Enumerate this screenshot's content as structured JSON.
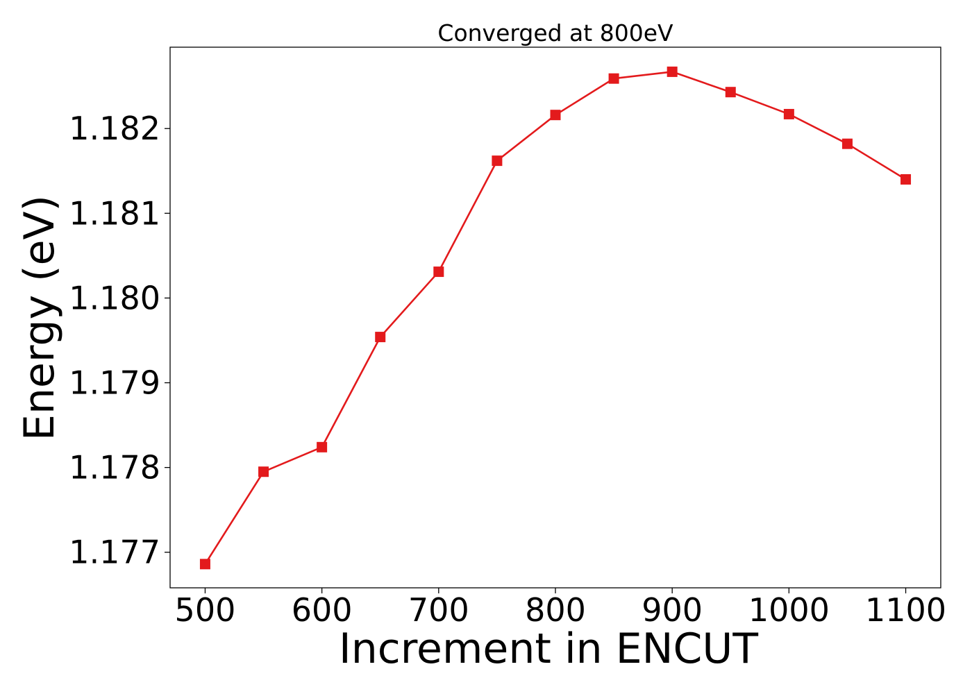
{
  "chart_data": {
    "type": "line",
    "title": "Converged at 800eV",
    "xlabel": "Increment in ENCUT",
    "ylabel": "Energy (eV)",
    "xlim": [
      470,
      1130
    ],
    "ylim": [
      1.17658,
      1.18296
    ],
    "xticks": [
      500,
      600,
      700,
      800,
      900,
      1000,
      1100
    ],
    "yticks": [
      1.177,
      1.178,
      1.179,
      1.18,
      1.181,
      1.182
    ],
    "ytick_labels": [
      "1.177",
      "1.178",
      "1.179",
      "1.180",
      "1.181",
      "1.182"
    ],
    "grid": false,
    "legend": "none",
    "series": [
      {
        "color": "#e31a1c",
        "marker": "square",
        "x": [
          500,
          550,
          600,
          650,
          700,
          750,
          800,
          850,
          900,
          950,
          1000,
          1050,
          1100
        ],
        "y": [
          1.17686,
          1.17795,
          1.17824,
          1.17954,
          1.18031,
          1.18162,
          1.18216,
          1.18259,
          1.18267,
          1.18243,
          1.18217,
          1.18182,
          1.1814
        ]
      }
    ]
  }
}
